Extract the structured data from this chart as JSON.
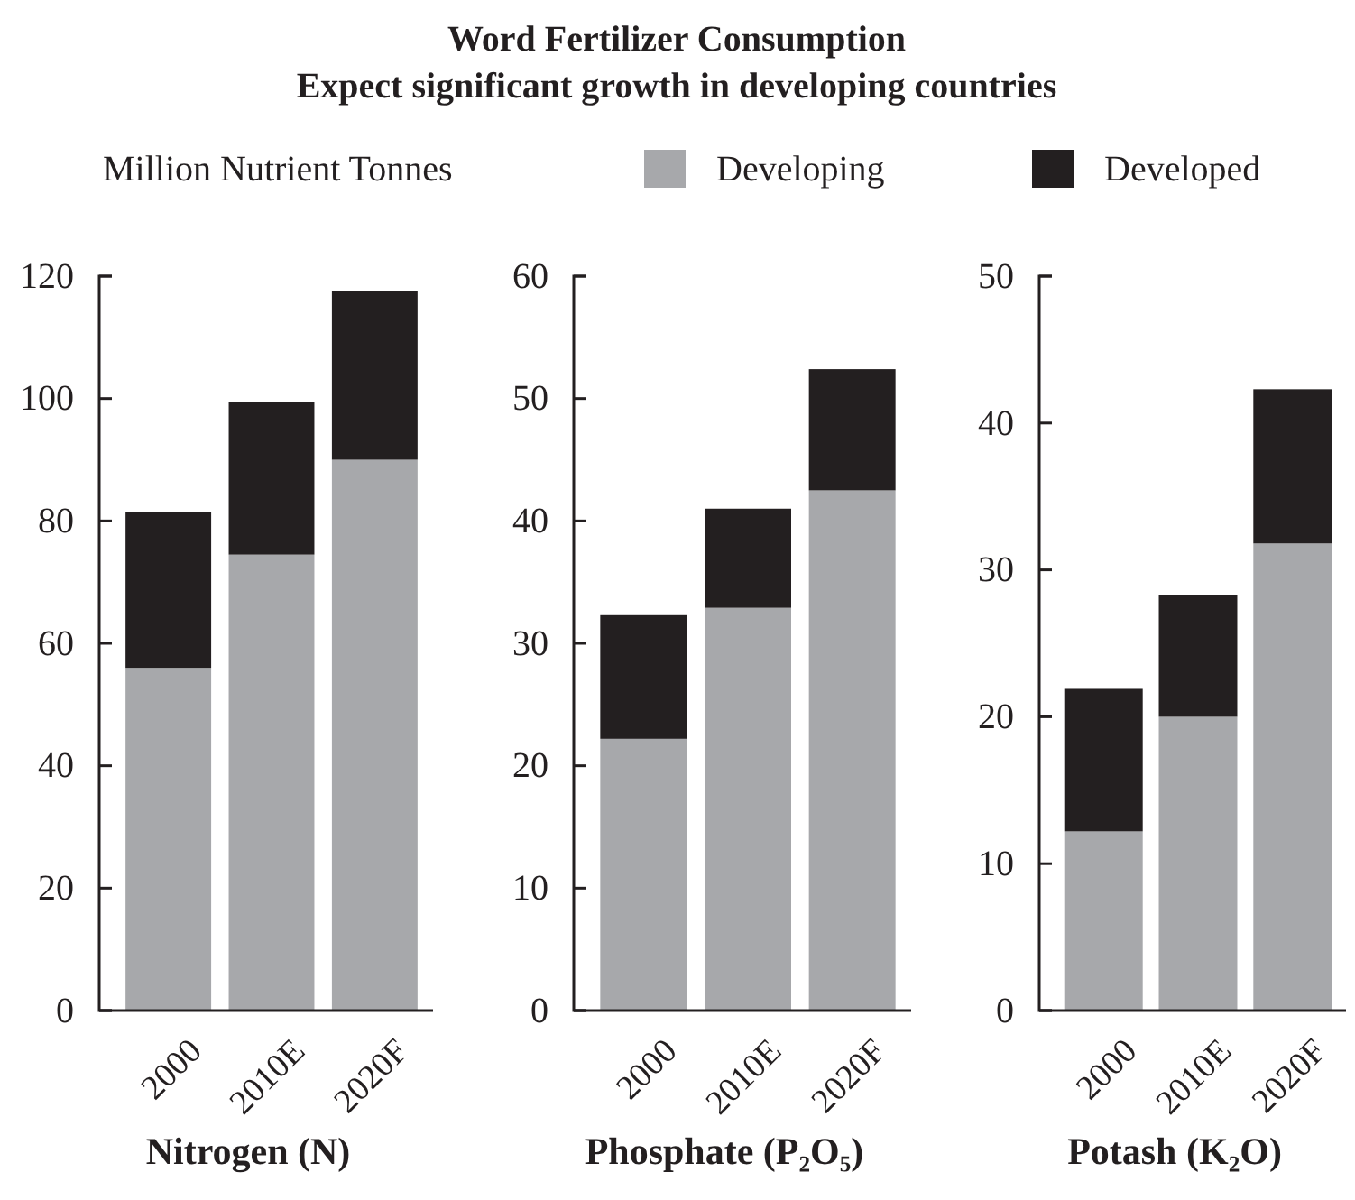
{
  "chart_data": [
    {
      "type": "bar",
      "legend_title": "Million Nutrient Tonnes",
      "legend": "top",
      "stacked": true,
      "xlabel": "Nitrogen (N)",
      "categories": [
        "2000",
        "2010E",
        "2020F"
      ],
      "ylim": [
        0,
        120
      ],
      "yticks": [
        0,
        20,
        40,
        60,
        80,
        100,
        120
      ],
      "series": [
        {
          "name": "Developing",
          "color": "#a7a8ab",
          "values": [
            56,
            74.5,
            90
          ]
        },
        {
          "name": "Developed",
          "color": "#231f20",
          "values": [
            25.5,
            25,
            27.5
          ]
        }
      ]
    },
    {
      "type": "bar",
      "title": "Word Fertilizer Consumption",
      "subtitle": "Expect significant growth in developing countries",
      "stacked": true,
      "xlabel": "Phosphate (P₂O₅)",
      "categories": [
        "2000",
        "2010E",
        "2020F"
      ],
      "ylim": [
        0,
        60
      ],
      "yticks": [
        0,
        10,
        20,
        30,
        40,
        50,
        60
      ],
      "series": [
        {
          "color": "#a7a8ab",
          "values": [
            22.2,
            32.9,
            42.5
          ]
        },
        {
          "color": "#231f20",
          "values": [
            10.1,
            8.1,
            9.9
          ]
        }
      ]
    },
    {
      "type": "bar",
      "stacked": true,
      "xlabel": "Potash (K₂O)",
      "categories": [
        "2000",
        "2010E",
        "2020F"
      ],
      "ylim": [
        0,
        50
      ],
      "yticks": [
        0,
        10,
        20,
        30,
        40,
        50
      ],
      "series": [
        {
          "color": "#a7a8ab",
          "values": [
            12.2,
            20,
            31.8
          ]
        },
        {
          "color": "#231f20",
          "values": [
            9.7,
            8.3,
            10.5
          ]
        }
      ]
    }
  ]
}
